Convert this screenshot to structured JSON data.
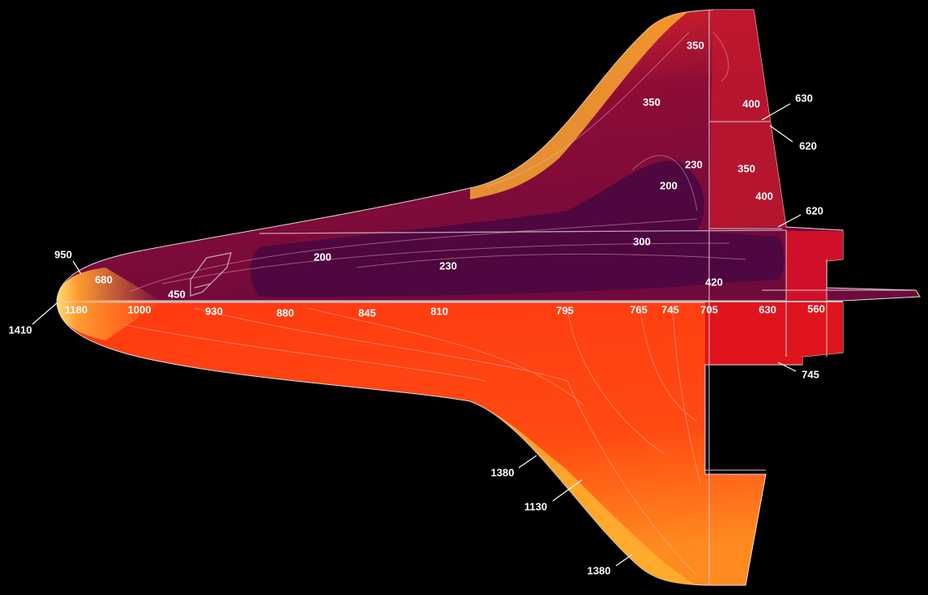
{
  "labels": [
    "350",
    "350",
    "400",
    "630",
    "620",
    "230",
    "350",
    "200",
    "400",
    "620",
    "300",
    "200",
    "230",
    "950",
    "680",
    "450",
    "420",
    "1180",
    "1000",
    "930",
    "880",
    "845",
    "810",
    "795",
    "765",
    "745",
    "705",
    "630",
    "560",
    "1410",
    "745",
    "1380",
    "1130",
    "1380"
  ]
}
